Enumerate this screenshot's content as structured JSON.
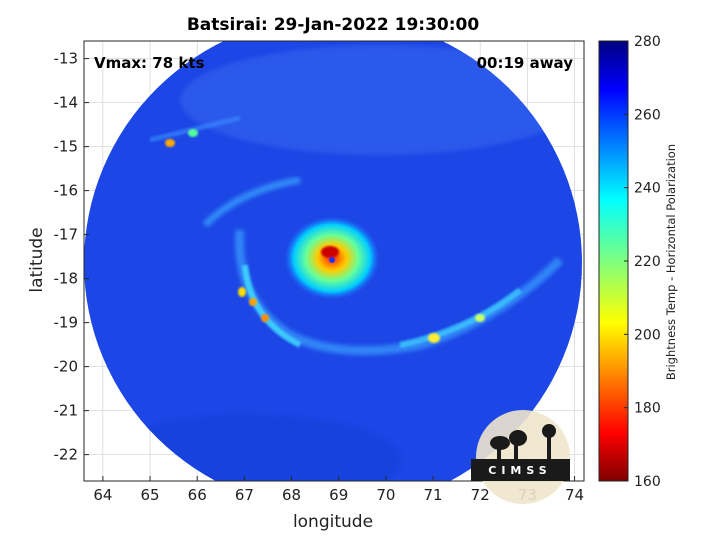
{
  "figure": {
    "title": "Batsirai: 29-Jan-2022 19:30:00",
    "annotation_left": "Vmax: 78 kts",
    "annotation_right": "00:19 away",
    "xlabel": "longitude",
    "ylabel": "latitude",
    "colorbar_label": "Brightness Temp - Horizontal Polarization",
    "logo_text": "CIMSS"
  },
  "axes": {
    "x_range": [
      63.6,
      74.2
    ],
    "y_range": [
      -22.6,
      -12.6
    ],
    "x_ticks": [
      64,
      65,
      66,
      67,
      68,
      69,
      70,
      71,
      72,
      73,
      74
    ],
    "y_ticks": [
      -13,
      -14,
      -15,
      -16,
      -17,
      -18,
      -19,
      -20,
      -21,
      -22
    ],
    "grid": true
  },
  "colorbar": {
    "range": [
      160,
      280
    ],
    "ticks": [
      280,
      260,
      240,
      220,
      200,
      180,
      160
    ],
    "colormap": "jet"
  },
  "swath": {
    "center_lon": 68.95,
    "center_lat": -17.6,
    "background_temp": 266
  },
  "storm": {
    "eye_lon": 68.85,
    "eye_lat": -17.6,
    "min_temp": 170
  },
  "colors": {
    "background": "#ffffff",
    "grid": "#d9d9d9",
    "swath_base": "#1c46e6"
  }
}
